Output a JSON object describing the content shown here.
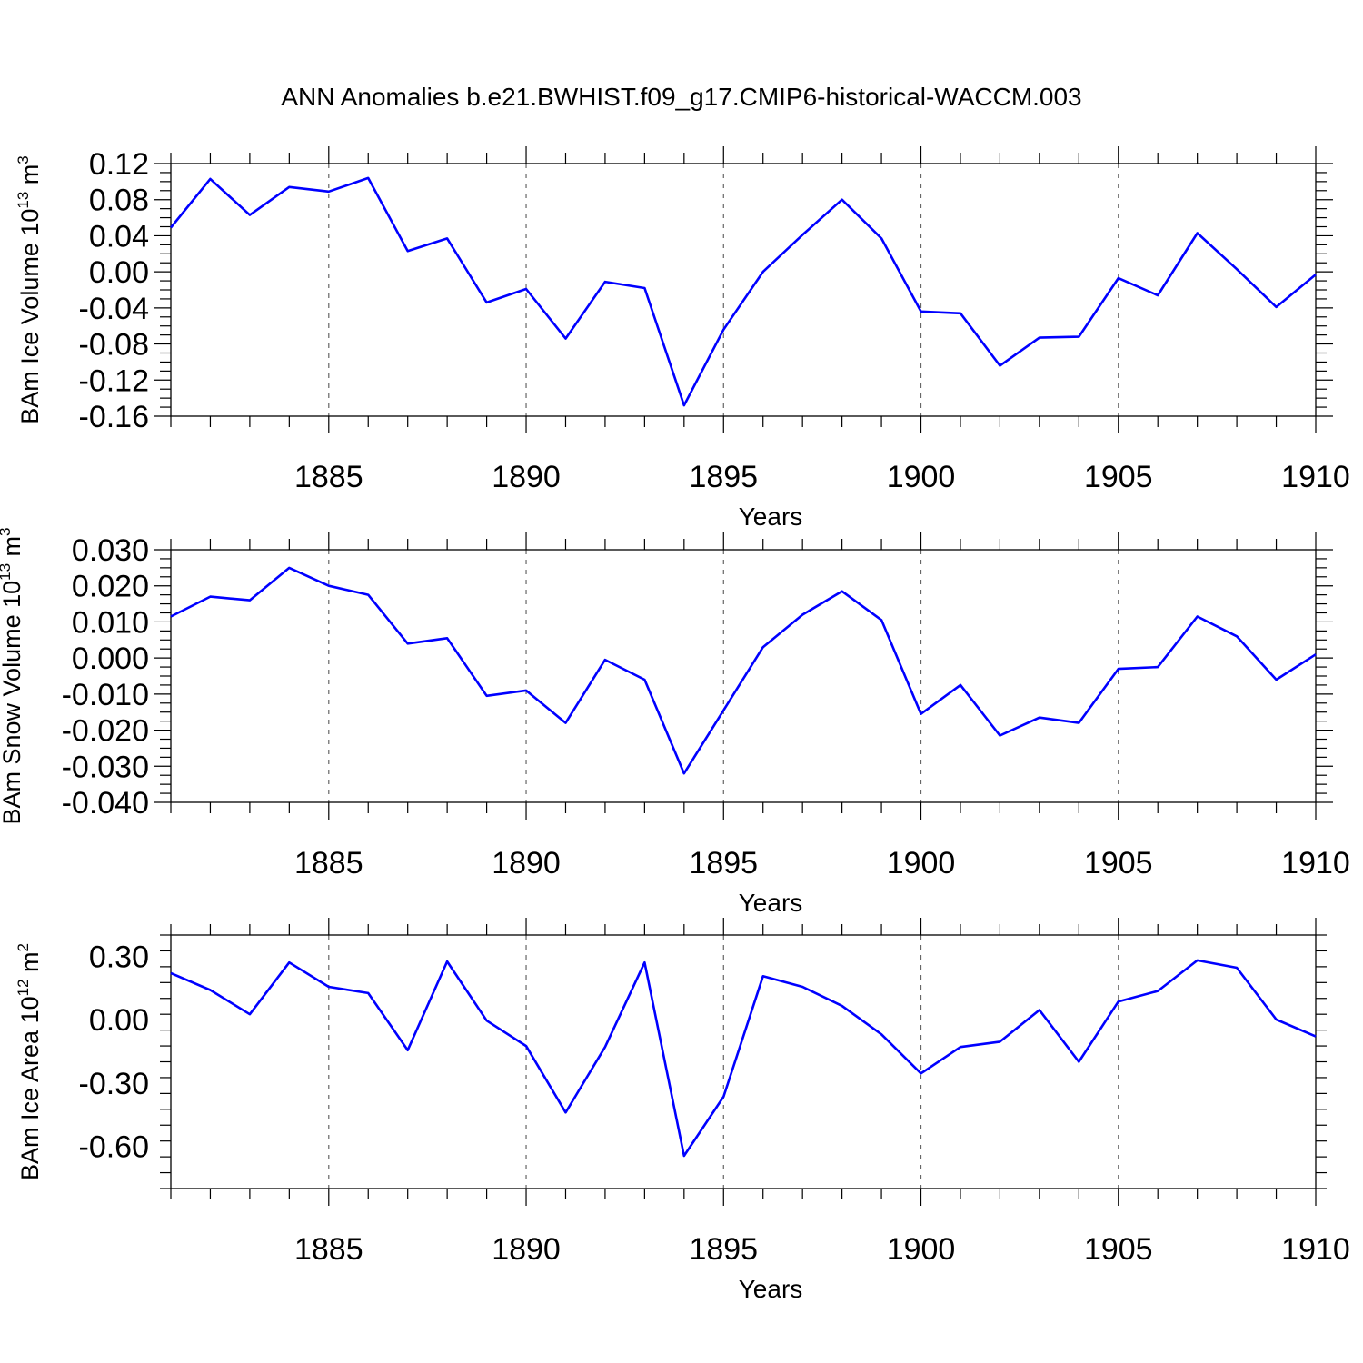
{
  "title": "ANN Anomalies b.e21.BWHIST.f09_g17.CMIP6-historical-WACCM.003",
  "colors": {
    "line": "#0000ff",
    "grid": "#666666",
    "axes": "#000000"
  },
  "chart_data": [
    {
      "type": "line",
      "ylabel_main": "BAm Ice Volume 10",
      "ylabel_exp": "13",
      "ylabel_tail": " m",
      "ylabel_unit_exp": "3",
      "xlabel": "Years",
      "xlim": [
        1881,
        1910
      ],
      "ylim": [
        -0.16,
        0.12
      ],
      "yticks": [
        0.12,
        0.08,
        0.04,
        0.0,
        -0.04,
        -0.08,
        -0.12,
        -0.16
      ],
      "ytick_labels": [
        "0.12",
        "0.08",
        "0.04",
        "0.00",
        "-0.04",
        "-0.08",
        "-0.12",
        "-0.16"
      ],
      "yminor_step": 0.01,
      "xticks": [
        1885,
        1890,
        1895,
        1900,
        1905,
        1910
      ],
      "xtick_labels": [
        "1885",
        "1890",
        "1895",
        "1900",
        "1905",
        "1910"
      ],
      "x": [
        1881,
        1882,
        1883,
        1884,
        1885,
        1886,
        1887,
        1888,
        1889,
        1890,
        1891,
        1892,
        1893,
        1894,
        1895,
        1896,
        1897,
        1898,
        1899,
        1900,
        1901,
        1902,
        1903,
        1904,
        1905,
        1906,
        1907,
        1908,
        1909,
        1910
      ],
      "series": [
        {
          "name": "BAm Ice Volume",
          "values": [
            0.049,
            0.103,
            0.063,
            0.094,
            0.089,
            0.104,
            0.023,
            0.037,
            -0.034,
            -0.019,
            -0.074,
            -0.011,
            -0.018,
            -0.148,
            -0.064,
            0.0,
            0.041,
            0.08,
            0.037,
            -0.044,
            -0.046,
            -0.104,
            -0.073,
            -0.072,
            -0.007,
            -0.026,
            0.043,
            0.003,
            -0.039,
            -0.003
          ]
        }
      ]
    },
    {
      "type": "line",
      "ylabel_main": "BAm Snow Volume 10",
      "ylabel_exp": "13",
      "ylabel_tail": " m",
      "ylabel_unit_exp": "3",
      "xlabel": "Years",
      "xlim": [
        1881,
        1910
      ],
      "ylim": [
        -0.04,
        0.03
      ],
      "yticks": [
        0.03,
        0.02,
        0.01,
        0.0,
        -0.01,
        -0.02,
        -0.03,
        -0.04
      ],
      "ytick_labels": [
        "0.030",
        "0.020",
        "0.010",
        "0.000",
        "-0.010",
        "-0.020",
        "-0.030",
        "-0.040"
      ],
      "yminor_step": 0.0025,
      "xticks": [
        1885,
        1890,
        1895,
        1900,
        1905,
        1910
      ],
      "xtick_labels": [
        "1885",
        "1890",
        "1895",
        "1900",
        "1905",
        "1910"
      ],
      "x": [
        1881,
        1882,
        1883,
        1884,
        1885,
        1886,
        1887,
        1888,
        1889,
        1890,
        1891,
        1892,
        1893,
        1894,
        1895,
        1896,
        1897,
        1898,
        1899,
        1900,
        1901,
        1902,
        1903,
        1904,
        1905,
        1906,
        1907,
        1908,
        1909,
        1910
      ],
      "series": [
        {
          "name": "BAm Snow Volume",
          "values": [
            0.0115,
            0.017,
            0.016,
            0.025,
            0.02,
            0.0175,
            0.004,
            0.0055,
            -0.0105,
            -0.009,
            -0.018,
            -0.0005,
            -0.006,
            -0.032,
            -0.0145,
            0.003,
            0.012,
            0.0185,
            0.0105,
            -0.0155,
            -0.0075,
            -0.0215,
            -0.0165,
            -0.018,
            -0.003,
            -0.0025,
            0.0115,
            0.006,
            -0.006,
            0.001
          ]
        }
      ]
    },
    {
      "type": "line",
      "ylabel_main": "BAm Ice Area 10",
      "ylabel_exp": "12",
      "ylabel_tail": " m",
      "ylabel_unit_exp": "2",
      "xlabel": "Years",
      "xlim": [
        1881,
        1910
      ],
      "ylim": [
        -0.8,
        0.4
      ],
      "yticks": [
        0.3,
        0.0,
        -0.3,
        -0.6
      ],
      "ytick_labels": [
        "0.30",
        "0.00",
        "-0.30",
        "-0.60"
      ],
      "yminor_step": 0.075,
      "xticks": [
        1885,
        1890,
        1895,
        1900,
        1905,
        1910
      ],
      "xtick_labels": [
        "1885",
        "1890",
        "1895",
        "1900",
        "1905",
        "1910"
      ],
      "x": [
        1881,
        1882,
        1883,
        1884,
        1885,
        1886,
        1887,
        1888,
        1889,
        1890,
        1891,
        1892,
        1893,
        1894,
        1895,
        1896,
        1897,
        1898,
        1899,
        1900,
        1901,
        1902,
        1903,
        1904,
        1905,
        1906,
        1907,
        1908,
        1909,
        1910
      ],
      "series": [
        {
          "name": "BAm Ice Area",
          "values": [
            0.22,
            0.14,
            0.025,
            0.27,
            0.155,
            0.125,
            -0.145,
            0.275,
            -0.005,
            -0.125,
            -0.44,
            -0.13,
            0.27,
            -0.645,
            -0.365,
            0.205,
            0.155,
            0.065,
            -0.07,
            -0.255,
            -0.13,
            -0.105,
            0.045,
            -0.2,
            0.085,
            0.135,
            0.28,
            0.245,
            0.0,
            -0.08
          ]
        }
      ]
    }
  ]
}
